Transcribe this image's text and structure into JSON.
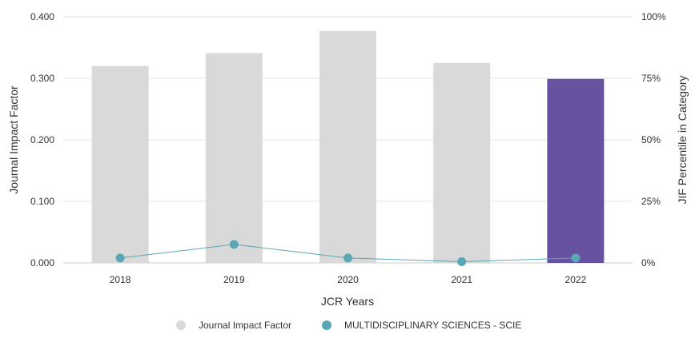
{
  "chart_data": {
    "type": "bar",
    "categories": [
      "2018",
      "2019",
      "2020",
      "2021",
      "2022"
    ],
    "series": [
      {
        "name": "Journal Impact Factor",
        "type": "bar",
        "axis": "left",
        "values": [
          0.32,
          0.341,
          0.377,
          0.325,
          0.299
        ],
        "color": "#d9d9d9",
        "highlight_index": 4,
        "highlight_color": "#6652a0"
      },
      {
        "name": "MULTIDISCIPLINARY SCIENCES - SCIE",
        "type": "line",
        "axis": "right",
        "values": [
          2,
          7.5,
          2,
          0.5,
          2
        ],
        "color": "#5ba6b5"
      }
    ],
    "xlabel": "JCR Years",
    "ylabel": "Journal Impact Factor",
    "y2label": "JIF Percentile in Category",
    "ylim": [
      0,
      0.4
    ],
    "y2lim": [
      0,
      100
    ],
    "yticks": [
      "0.000",
      "0.100",
      "0.200",
      "0.300",
      "0.400"
    ],
    "y2ticks": [
      "0%",
      "25%",
      "50%",
      "75%",
      "100%"
    ],
    "grid": true,
    "legend": "bottom",
    "legend_marker_colors": [
      "#d9d9d9",
      "#5ba6b5"
    ]
  }
}
